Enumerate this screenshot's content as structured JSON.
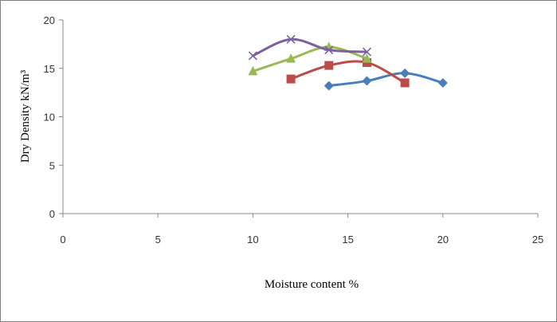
{
  "chart_data": {
    "type": "line",
    "title": "",
    "xlabel": "Moisture content %",
    "ylabel": "Dry Density kN/m³",
    "xlim": [
      0,
      25
    ],
    "ylim": [
      0,
      20
    ],
    "x_ticks": [
      "0",
      "5",
      "10",
      "15",
      "20",
      "25"
    ],
    "y_ticks": [
      "0",
      "5",
      "10",
      "15",
      "20"
    ],
    "grid": false,
    "legend": "none",
    "smoothed": true,
    "series": [
      {
        "color": "#4a7ebb",
        "marker": "diamond",
        "x": [
          14,
          16,
          18,
          20
        ],
        "y": [
          13.2,
          13.7,
          14.5,
          13.5
        ]
      },
      {
        "color": "#be4b48",
        "marker": "square",
        "x": [
          12,
          14,
          16,
          18
        ],
        "y": [
          13.9,
          15.3,
          15.6,
          13.5
        ]
      },
      {
        "color": "#98b954",
        "marker": "triangle",
        "x": [
          10,
          12,
          14,
          16
        ],
        "y": [
          14.7,
          16.0,
          17.2,
          16.0
        ]
      },
      {
        "color": "#7d60a0",
        "marker": "x",
        "x": [
          10,
          12,
          14,
          16
        ],
        "y": [
          16.3,
          18.0,
          16.9,
          16.7
        ]
      }
    ]
  }
}
